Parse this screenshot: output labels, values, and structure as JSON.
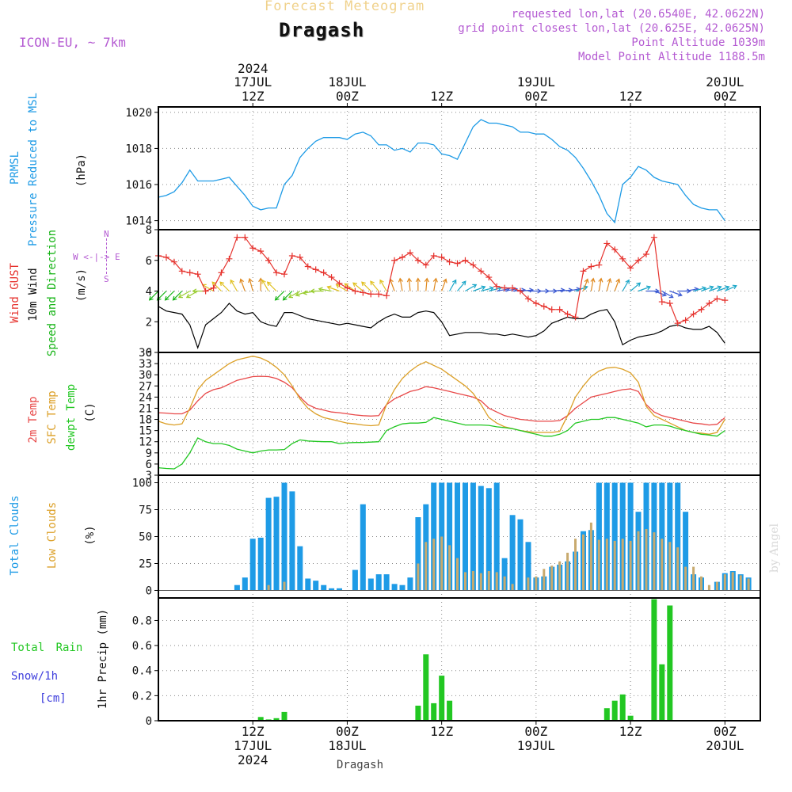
{
  "header": {
    "product": "Forecast Meteogram",
    "place": "Dragash",
    "model": "ICON-EU, ~ 7km",
    "requested": "requested lon,lat (20.6540E, 42.0622N)",
    "grid": "grid point closest lon,lat (20.625E, 42.0625N)",
    "point_altitude": "Point Altitude 1039m",
    "model_altitude": "Model Point Altitude 1188.5m",
    "footer_place": "Dragash",
    "credit": "by Angel"
  },
  "colors": {
    "pressure": "#1e9be6",
    "gust": "#e6322d",
    "wind": "#000000",
    "direction": "#16b416",
    "temp": "#e84848",
    "sfc": "#dca028",
    "dewpt": "#22c722",
    "total_clouds": "#1e9be6",
    "low_clouds": "#c8aa6e",
    "rain": "#22c722",
    "snow": "#3c3cdc",
    "header": "#b45ad2",
    "product": "#f0d28c"
  },
  "time_axis": {
    "top_ticks": [
      {
        "h": 12,
        "line1": "2024",
        "line2": "17JUL",
        "line3": "12Z"
      },
      {
        "h": 24,
        "line1": "",
        "line2": "18JUL",
        "line3": "00Z"
      },
      {
        "h": 36,
        "line1": "",
        "line2": "",
        "line3": "12Z"
      },
      {
        "h": 48,
        "line1": "",
        "line2": "19JUL",
        "line3": "00Z"
      },
      {
        "h": 60,
        "line1": "",
        "line2": "",
        "line3": "12Z"
      },
      {
        "h": 72,
        "line1": "",
        "line2": "20JUL",
        "line3": "00Z"
      }
    ],
    "bottom_ticks": [
      {
        "h": 12,
        "line1": "12Z",
        "line2": "17JUL",
        "line3": "2024"
      },
      {
        "h": 24,
        "line1": "00Z",
        "line2": "18JUL",
        "line3": ""
      },
      {
        "h": 36,
        "line1": "12Z",
        "line2": "",
        "line3": ""
      },
      {
        "h": 48,
        "line1": "00Z",
        "line2": "19JUL",
        "line3": ""
      },
      {
        "h": 60,
        "line1": "12Z",
        "line2": "",
        "line3": ""
      },
      {
        "h": 72,
        "line1": "00Z",
        "line2": "20JUL",
        "line3": ""
      }
    ]
  },
  "panel_labels": {
    "pressure": {
      "name": "PRMSL",
      "desc": "Pressure Reduced to MSL",
      "unit": "(hPa)"
    },
    "wind": {
      "gust": "Wind GUST",
      "wind10": "10m Wind",
      "dir": "Speed and Direction",
      "unit": "(m/s)",
      "compass_n": "N",
      "compass_s": "S",
      "compass_ew": "W <-|-> E"
    },
    "temp": {
      "t2m": "2m Temp",
      "sfc": "SFC Temp",
      "dew": "dewpt Temp",
      "unit": "(C)"
    },
    "clouds": {
      "total": "Total Clouds",
      "low": "Low Clouds",
      "unit": "(%)"
    },
    "precip": {
      "rain": "Total Rain",
      "snow": "Snow/1h",
      "cm": "[cm]",
      "unit": "1hr Precip (mm)"
    }
  },
  "chart_data": [
    {
      "type": "line",
      "name": "pressure",
      "ylabel": "(hPa)",
      "ylim": [
        1013.5,
        1020.3
      ],
      "yticks": [
        1014,
        1016,
        1018,
        1020
      ],
      "x_start_hour": 0,
      "x_step_hours": 1,
      "series": [
        {
          "name": "PRMSL",
          "values": [
            1015.3,
            1015.4,
            1015.6,
            1016.1,
            1016.8,
            1016.2,
            1016.2,
            1016.2,
            1016.3,
            1016.4,
            1015.9,
            1015.4,
            1014.8,
            1014.6,
            1014.7,
            1014.7,
            1016.0,
            1016.5,
            1017.5,
            1018.0,
            1018.4,
            1018.6,
            1018.6,
            1018.6,
            1018.5,
            1018.8,
            1018.9,
            1018.7,
            1018.2,
            1018.2,
            1017.9,
            1018.0,
            1017.8,
            1018.3,
            1018.3,
            1018.2,
            1017.7,
            1017.6,
            1017.4,
            1018.3,
            1019.2,
            1019.6,
            1019.4,
            1019.4,
            1019.3,
            1019.2,
            1018.9,
            1018.9,
            1018.8,
            1018.8,
            1018.5,
            1018.1,
            1017.9,
            1017.5,
            1016.9,
            1016.2,
            1015.4,
            1014.4,
            1013.9,
            1016.0,
            1016.4,
            1017.0,
            1016.8,
            1016.4,
            1016.2,
            1016.1,
            1016.0,
            1015.4,
            1014.9,
            1014.7,
            1014.6,
            1014.6,
            1014.0
          ]
        }
      ]
    },
    {
      "type": "line",
      "name": "wind",
      "ylabel": "(m/s)",
      "ylim": [
        0,
        8
      ],
      "yticks": [
        0,
        2,
        4,
        6,
        8
      ],
      "x_start_hour": 0,
      "x_step_hours": 1,
      "series": [
        {
          "name": "Wind GUST",
          "values": [
            6.3,
            6.2,
            5.9,
            5.3,
            5.2,
            5.1,
            4.0,
            4.2,
            5.2,
            6.1,
            7.5,
            7.5,
            6.8,
            6.6,
            6.0,
            5.2,
            5.1,
            6.3,
            6.2,
            5.6,
            5.4,
            5.2,
            4.9,
            4.5,
            4.2,
            4.0,
            3.9,
            3.8,
            3.8,
            3.7,
            6.0,
            6.2,
            6.5,
            6.0,
            5.7,
            6.3,
            6.2,
            5.9,
            5.8,
            6.0,
            5.7,
            5.3,
            4.9,
            4.3,
            4.2,
            4.2,
            4.0,
            3.5,
            3.2,
            3.0,
            2.8,
            2.8,
            2.5,
            2.3,
            5.3,
            5.6,
            5.7,
            7.1,
            6.7,
            6.1,
            5.5,
            6.0,
            6.4,
            7.5,
            3.3,
            3.2,
            1.9,
            2.1,
            2.5,
            2.8,
            3.2,
            3.5,
            3.4
          ]
        },
        {
          "name": "10m Wind",
          "values": [
            3.0,
            2.7,
            2.6,
            2.5,
            1.8,
            0.3,
            1.8,
            2.2,
            2.6,
            3.2,
            2.7,
            2.5,
            2.6,
            2.0,
            1.8,
            1.7,
            2.6,
            2.6,
            2.4,
            2.2,
            2.1,
            2.0,
            1.9,
            1.8,
            1.9,
            1.8,
            1.7,
            1.6,
            2.0,
            2.3,
            2.5,
            2.3,
            2.3,
            2.6,
            2.7,
            2.6,
            2.0,
            1.1,
            1.2,
            1.3,
            1.3,
            1.3,
            1.2,
            1.2,
            1.1,
            1.2,
            1.1,
            1.0,
            1.1,
            1.4,
            1.9,
            2.1,
            2.3,
            2.2,
            2.2,
            2.5,
            2.7,
            2.8,
            2.0,
            0.5,
            0.8,
            1.0,
            1.1,
            1.2,
            1.4,
            1.7,
            1.8,
            1.6,
            1.5,
            1.5,
            1.7,
            1.3,
            0.6
          ]
        }
      ],
      "direction_deg": [
        45,
        45,
        45,
        45,
        60,
        60,
        90,
        120,
        135,
        135,
        150,
        160,
        165,
        180,
        150,
        135,
        45,
        45,
        60,
        70,
        80,
        90,
        100,
        110,
        120,
        125,
        130,
        135,
        140,
        150,
        160,
        170,
        175,
        180,
        185,
        190,
        200,
        210,
        220,
        240,
        250,
        255,
        255,
        260,
        260,
        265,
        265,
        270,
        270,
        270,
        265,
        265,
        260,
        250,
        200,
        190,
        190,
        195,
        200,
        210,
        230,
        250,
        270,
        290,
        300,
        290,
        270,
        260,
        255,
        250,
        250,
        250,
        245
      ]
    },
    {
      "type": "line",
      "name": "temperature",
      "ylabel": "(C)",
      "ylim": [
        3,
        36
      ],
      "yticks": [
        3,
        6,
        9,
        12,
        15,
        18,
        21,
        24,
        27,
        30,
        33,
        36
      ],
      "x_start_hour": 0,
      "x_step_hours": 1,
      "series": [
        {
          "name": "2m Temp",
          "values": [
            19.8,
            19.7,
            19.5,
            19.5,
            20.5,
            23.0,
            25.0,
            26.0,
            26.5,
            27.5,
            28.5,
            29.0,
            29.5,
            29.6,
            29.5,
            29.0,
            28.0,
            26.5,
            24.0,
            22.0,
            21.0,
            20.5,
            20.0,
            19.8,
            19.5,
            19.2,
            19.0,
            18.9,
            19.0,
            22.0,
            23.5,
            24.5,
            25.5,
            26.0,
            26.8,
            26.5,
            26.0,
            25.5,
            25.0,
            24.5,
            24.0,
            23.0,
            21.0,
            20.0,
            19.0,
            18.5,
            18.0,
            17.8,
            17.5,
            17.5,
            17.5,
            17.7,
            19.0,
            21.0,
            22.5,
            24.0,
            24.5,
            25.0,
            25.5,
            26.0,
            26.2,
            25.5,
            22.0,
            20.0,
            19.0,
            18.5,
            18.0,
            17.5,
            17.0,
            16.8,
            16.5,
            16.7,
            18.5
          ]
        },
        {
          "name": "SFC Temp",
          "values": [
            17.5,
            16.8,
            16.5,
            16.8,
            21.0,
            26.0,
            28.5,
            30.0,
            31.5,
            33.0,
            34.0,
            34.5,
            35.0,
            34.5,
            33.5,
            32.0,
            30.0,
            27.0,
            23.5,
            21.0,
            19.5,
            18.5,
            18.0,
            17.5,
            17.0,
            16.8,
            16.5,
            16.3,
            16.5,
            22.0,
            26.0,
            29.0,
            31.0,
            32.5,
            33.5,
            32.5,
            31.5,
            30.0,
            28.5,
            27.0,
            25.0,
            22.0,
            18.5,
            17.0,
            16.0,
            15.5,
            15.0,
            14.7,
            14.5,
            14.5,
            14.5,
            14.8,
            19.0,
            24.0,
            27.0,
            29.5,
            31.0,
            31.8,
            32.0,
            31.5,
            30.5,
            28.0,
            21.5,
            19.0,
            18.0,
            17.0,
            16.0,
            15.0,
            14.5,
            14.3,
            14.0,
            14.5,
            18.0
          ]
        },
        {
          "name": "dewpt Temp",
          "values": [
            5.0,
            4.8,
            4.7,
            6.0,
            9.0,
            13.0,
            12.0,
            11.5,
            11.5,
            11.0,
            10.0,
            9.5,
            9.0,
            9.5,
            9.8,
            9.8,
            9.9,
            11.5,
            12.5,
            12.2,
            12.1,
            12.0,
            12.0,
            11.5,
            11.7,
            11.8,
            11.8,
            11.9,
            12.0,
            15.0,
            16.0,
            16.8,
            17.0,
            17.0,
            17.2,
            18.5,
            18.0,
            17.5,
            17.0,
            16.5,
            16.5,
            16.5,
            16.4,
            16.0,
            15.8,
            15.5,
            15.0,
            14.5,
            14.0,
            13.5,
            13.5,
            14.0,
            15.0,
            17.0,
            17.5,
            18.0,
            18.0,
            18.5,
            18.5,
            18.0,
            17.5,
            17.0,
            16.0,
            16.5,
            16.5,
            16.2,
            15.5,
            15.0,
            14.5,
            14.0,
            13.8,
            13.5,
            15.0
          ]
        }
      ]
    },
    {
      "type": "bar",
      "name": "clouds",
      "ylabel": "(%)",
      "ylim": [
        -7,
        107
      ],
      "yticks": [
        0,
        25,
        50,
        75,
        100
      ],
      "x_start_hour": 0,
      "x_step_hours": 1,
      "series": [
        {
          "name": "Total Clouds",
          "values": [
            0,
            0,
            0,
            0,
            0,
            0,
            0,
            0,
            0,
            0,
            5,
            12,
            48,
            49,
            86,
            87,
            100,
            92,
            41,
            11,
            9,
            5,
            2,
            2,
            0,
            19,
            80,
            11,
            15,
            15,
            6,
            5,
            12,
            68,
            80,
            100,
            100,
            100,
            100,
            100,
            100,
            97,
            95,
            100,
            30,
            70,
            66,
            45,
            12,
            13,
            22,
            24,
            27,
            36,
            55,
            56,
            100,
            100,
            100,
            100,
            100,
            73,
            100,
            100,
            100,
            100,
            100,
            73,
            15,
            12,
            0,
            8,
            16,
            18,
            15,
            12
          ]
        },
        {
          "name": "Low Clouds",
          "values": [
            0,
            0,
            0,
            0,
            0,
            0,
            0,
            0,
            0,
            0,
            0,
            0,
            0,
            0,
            5,
            0,
            8,
            0,
            0,
            0,
            0,
            0,
            0,
            0,
            0,
            0,
            0,
            0,
            0,
            0,
            0,
            0,
            0,
            25,
            45,
            48,
            50,
            42,
            30,
            17,
            18,
            16,
            18,
            17,
            13,
            6,
            0,
            12,
            13,
            20,
            23,
            27,
            35,
            48,
            52,
            63,
            47,
            48,
            46,
            48,
            46,
            55,
            57,
            54,
            48,
            45,
            40,
            22,
            22,
            13,
            5,
            8,
            15,
            17,
            14,
            11
          ]
        }
      ]
    },
    {
      "type": "bar",
      "name": "precip",
      "ylabel": "1hr Precip (mm)",
      "ylim": [
        0,
        0.98
      ],
      "yticks": [
        0,
        0.2,
        0.4,
        0.6,
        0.8
      ],
      "x_start_hour": 0,
      "x_step_hours": 1,
      "series": [
        {
          "name": "Total Rain",
          "values": [
            0,
            0,
            0,
            0,
            0,
            0,
            0,
            0,
            0,
            0,
            0,
            0,
            0,
            0.03,
            0.01,
            0.02,
            0.07,
            0,
            0,
            0,
            0,
            0,
            0,
            0,
            0,
            0,
            0,
            0,
            0,
            0,
            0,
            0,
            0,
            0.12,
            0.53,
            0.14,
            0.36,
            0.16,
            0,
            0,
            0,
            0,
            0,
            0,
            0,
            0,
            0,
            0,
            0,
            0,
            0,
            0,
            0,
            0,
            0,
            0,
            0,
            0.1,
            0.16,
            0.21,
            0.04,
            0,
            0,
            0.97,
            0.45,
            0.92,
            0,
            0,
            0,
            0,
            0,
            0,
            0,
            0,
            0,
            0
          ]
        },
        {
          "name": "Snow/1h",
          "values": [
            0,
            0,
            0,
            0,
            0,
            0,
            0,
            0,
            0,
            0,
            0,
            0,
            0,
            0,
            0,
            0,
            0,
            0,
            0,
            0,
            0,
            0,
            0,
            0,
            0,
            0,
            0,
            0,
            0,
            0,
            0,
            0,
            0,
            0,
            0,
            0,
            0,
            0,
            0,
            0,
            0,
            0,
            0,
            0,
            0,
            0,
            0,
            0,
            0,
            0,
            0,
            0,
            0,
            0,
            0,
            0,
            0,
            0,
            0,
            0,
            0,
            0,
            0,
            0,
            0,
            0,
            0,
            0,
            0,
            0,
            0,
            0,
            0,
            0,
            0,
            0
          ]
        }
      ]
    }
  ]
}
